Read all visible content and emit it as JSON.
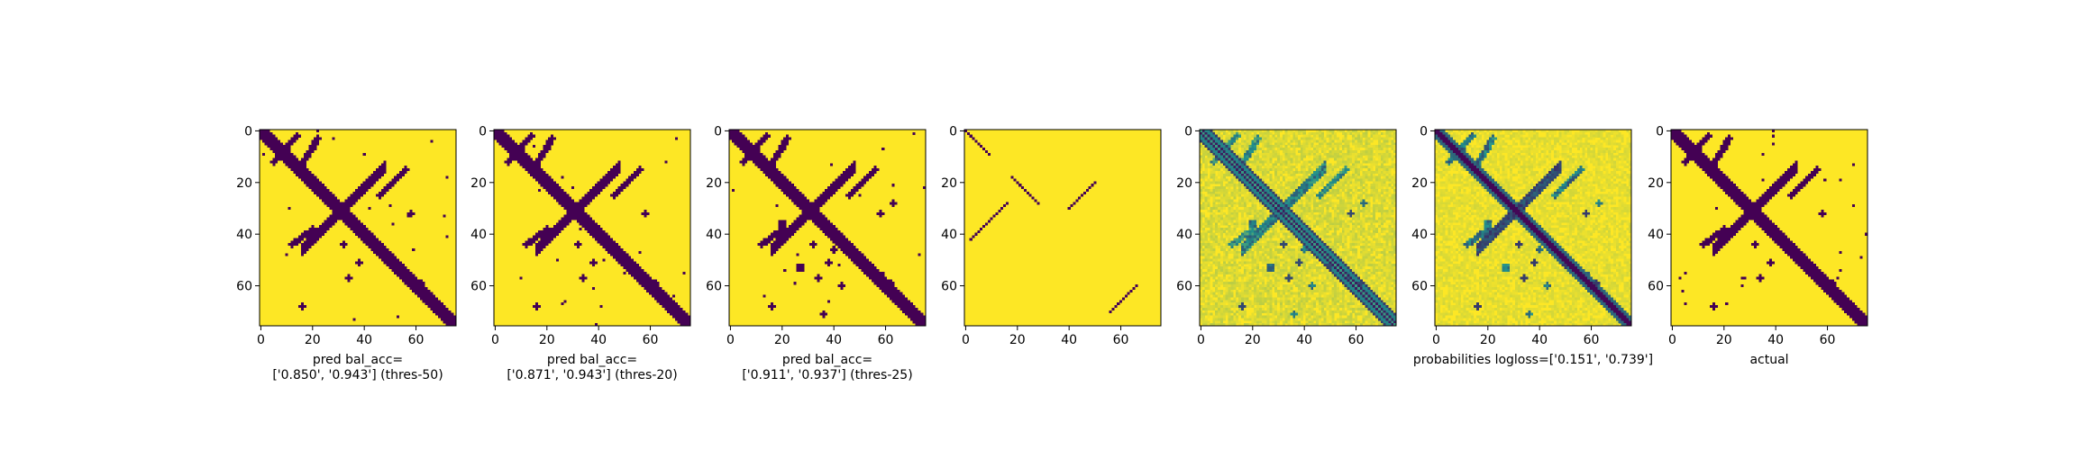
{
  "chart_data": {
    "type": "heatmap",
    "grid_size": 76,
    "colormap": {
      "low": "#440154",
      "mid": "#21918c",
      "high": "#fde725"
    },
    "x_ticks": [
      0,
      20,
      40,
      60
    ],
    "y_ticks": [
      0,
      20,
      40,
      60
    ],
    "panels": [
      {
        "name": "pred-thres-50",
        "kind": "binary",
        "threshold": 50,
        "xlabel": [
          "pred bal_acc=",
          "['0.850', '0.943'] (thres-50)"
        ]
      },
      {
        "name": "pred-thres-20",
        "kind": "binary",
        "threshold": 20,
        "xlabel": [
          "pred bal_acc=",
          "['0.871', '0.943'] (thres-20)"
        ]
      },
      {
        "name": "pred-thres-25",
        "kind": "binary",
        "threshold": 25,
        "xlabel": [
          "pred bal_acc=",
          "['0.911', '0.937'] (thres-25)"
        ]
      },
      {
        "name": "sparse-prediction",
        "kind": "sparse",
        "xlabel": []
      },
      {
        "name": "raw-scores",
        "kind": "continuous",
        "xlabel": []
      },
      {
        "name": "probabilities",
        "kind": "probability",
        "xlabel": [
          "probabilities logloss=['0.151', '0.739']"
        ]
      },
      {
        "name": "actual",
        "kind": "actual",
        "xlabel": [
          "actual"
        ]
      }
    ]
  }
}
